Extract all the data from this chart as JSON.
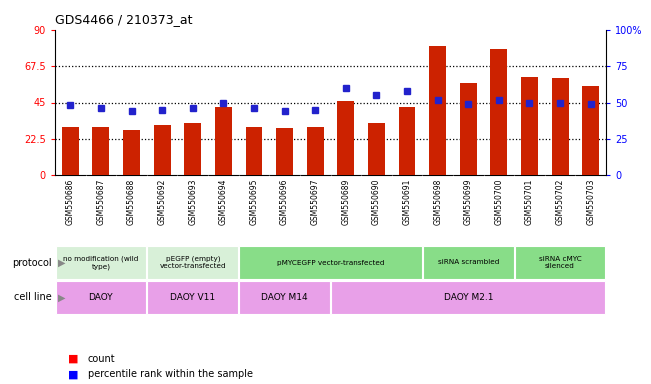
{
  "title": "GDS4466 / 210373_at",
  "samples": [
    "GSM550686",
    "GSM550687",
    "GSM550688",
    "GSM550692",
    "GSM550693",
    "GSM550694",
    "GSM550695",
    "GSM550696",
    "GSM550697",
    "GSM550689",
    "GSM550690",
    "GSM550691",
    "GSM550698",
    "GSM550699",
    "GSM550700",
    "GSM550701",
    "GSM550702",
    "GSM550703"
  ],
  "counts": [
    30,
    30,
    28,
    31,
    32,
    42,
    30,
    29,
    30,
    46,
    32,
    42,
    80,
    57,
    78,
    61,
    60,
    55
  ],
  "percentiles": [
    48,
    46,
    44,
    45,
    46,
    50,
    46,
    44,
    45,
    60,
    55,
    58,
    52,
    49,
    52,
    50,
    50,
    49
  ],
  "bar_color": "#cc2200",
  "dot_color": "#2222cc",
  "ylim_left": [
    0,
    90
  ],
  "ylim_right": [
    0,
    100
  ],
  "yticks_left": [
    0,
    22.5,
    45,
    67.5,
    90
  ],
  "ytick_labels_left": [
    "0",
    "22.5",
    "45",
    "67.5",
    "90"
  ],
  "yticks_right": [
    0,
    25,
    50,
    75,
    100
  ],
  "ytick_labels_right": [
    "0",
    "25",
    "50",
    "75",
    "100%"
  ],
  "hlines": [
    22.5,
    45,
    67.5
  ],
  "protocol_groups": [
    {
      "text": "no modification (wild\ntype)",
      "start": 0,
      "end": 3,
      "color": "#d8f0d8"
    },
    {
      "text": "pEGFP (empty)\nvector-transfected",
      "start": 3,
      "end": 6,
      "color": "#d8f0d8"
    },
    {
      "text": "pMYCEGFP vector-transfected",
      "start": 6,
      "end": 12,
      "color": "#88dd88"
    },
    {
      "text": "siRNA scrambled",
      "start": 12,
      "end": 15,
      "color": "#88dd88"
    },
    {
      "text": "siRNA cMYC\nsilenced",
      "start": 15,
      "end": 18,
      "color": "#88dd88"
    }
  ],
  "cellline_groups": [
    {
      "text": "DAOY",
      "start": 0,
      "end": 3,
      "color": "#e8a0e8"
    },
    {
      "text": "DAOY V11",
      "start": 3,
      "end": 6,
      "color": "#e8a0e8"
    },
    {
      "text": "DAOY M14",
      "start": 6,
      "end": 9,
      "color": "#e8a0e8"
    },
    {
      "text": "DAOY M2.1",
      "start": 9,
      "end": 18,
      "color": "#e8a0e8"
    }
  ],
  "xtick_bg": "#cccccc",
  "chart_bg": "#ffffff"
}
